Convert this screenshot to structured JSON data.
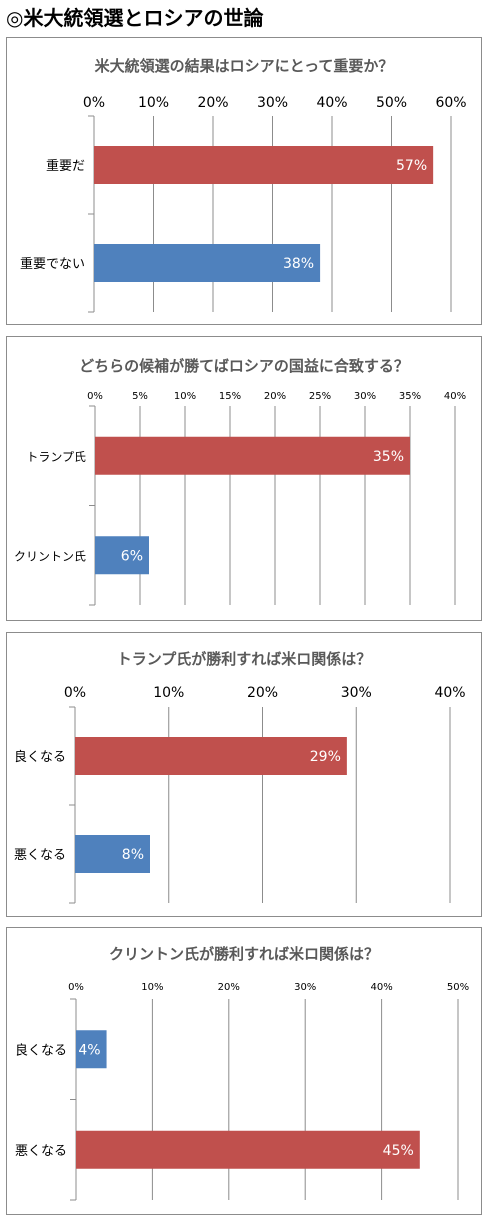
{
  "page_title": "◎米大統領選とロシアの世論",
  "colors": {
    "red": "#c0504d",
    "blue": "#4f81bd",
    "grid": "#8c8c8c",
    "title_text": "#595959"
  },
  "chart_data": [
    {
      "type": "bar",
      "orientation": "horizontal",
      "title": "米大統領選の結果はロシアにとって重要か？",
      "categories": [
        "重要だ",
        "重要でない"
      ],
      "values": [
        57,
        38
      ],
      "value_labels": [
        "57%",
        "38%"
      ],
      "bar_colors": [
        "#c0504d",
        "#4f81bd"
      ],
      "xlim": [
        0,
        60
      ],
      "ticks": [
        0,
        10,
        20,
        30,
        40,
        50,
        60
      ],
      "tick_labels": [
        "0%",
        "10%",
        "20%",
        "30%",
        "40%",
        "50%",
        "60%"
      ],
      "axis_position": "top",
      "grid": true,
      "legend": "none"
    },
    {
      "type": "bar",
      "orientation": "horizontal",
      "title": "どちらの候補が勝てばロシアの国益に合致する？",
      "categories": [
        "トランプ氏",
        "クリントン氏"
      ],
      "values": [
        35,
        6
      ],
      "value_labels": [
        "35%",
        "6%"
      ],
      "bar_colors": [
        "#c0504d",
        "#4f81bd"
      ],
      "xlim": [
        0,
        40
      ],
      "ticks": [
        0,
        5,
        10,
        15,
        20,
        25,
        30,
        35,
        40
      ],
      "tick_labels": [
        "0%",
        "5%",
        "10%",
        "15%",
        "20%",
        "25%",
        "30%",
        "35%",
        "40%"
      ],
      "axis_position": "top",
      "grid": true,
      "legend": "none"
    },
    {
      "type": "bar",
      "orientation": "horizontal",
      "title": "トランプ氏が勝利すれば米ロ関係は？",
      "categories": [
        "良くなる",
        "悪くなる"
      ],
      "values": [
        29,
        8
      ],
      "value_labels": [
        "29%",
        "8%"
      ],
      "bar_colors": [
        "#c0504d",
        "#4f81bd"
      ],
      "xlim": [
        0,
        40
      ],
      "ticks": [
        0,
        10,
        20,
        30,
        40
      ],
      "tick_labels": [
        "0%",
        "10%",
        "20%",
        "30%",
        "40%"
      ],
      "axis_position": "top",
      "grid": true,
      "legend": "none"
    },
    {
      "type": "bar",
      "orientation": "horizontal",
      "title": "クリントン氏が勝利すれば米ロ関係は？",
      "categories": [
        "良くなる",
        "悪くなる"
      ],
      "values": [
        4,
        45
      ],
      "value_labels": [
        "4%",
        "45%"
      ],
      "bar_colors": [
        "#4f81bd",
        "#c0504d"
      ],
      "xlim": [
        0,
        50
      ],
      "ticks": [
        0,
        10,
        20,
        30,
        40,
        50
      ],
      "tick_labels": [
        "0%",
        "10%",
        "20%",
        "30%",
        "40%",
        "50%"
      ],
      "axis_position": "top",
      "grid": true,
      "legend": "none"
    }
  ]
}
